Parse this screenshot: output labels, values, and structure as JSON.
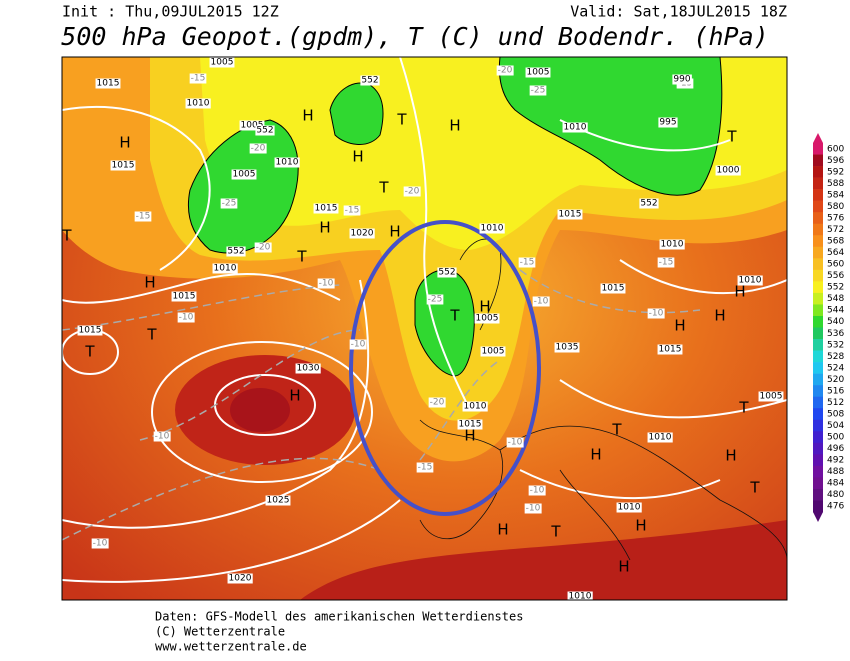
{
  "header": {
    "init": "Init : Thu,09JUL2015 12Z",
    "valid": "Valid: Sat,18JUL2015 18Z",
    "title": "500 hPa Geopot.(gpdm), T (C) und Bodendr. (hPa)"
  },
  "colorbar": [
    {
      "value": 600,
      "color": "#d8186a"
    },
    {
      "value": 596,
      "color": "#a00a1e"
    },
    {
      "value": 592,
      "color": "#b41412"
    },
    {
      "value": 588,
      "color": "#c42414"
    },
    {
      "value": 584,
      "color": "#d43414"
    },
    {
      "value": 580,
      "color": "#e04818"
    },
    {
      "value": 576,
      "color": "#e86018"
    },
    {
      "value": 572,
      "color": "#f07818"
    },
    {
      "value": 568,
      "color": "#f8901c"
    },
    {
      "value": 564,
      "color": "#f8a820"
    },
    {
      "value": 560,
      "color": "#f8c024"
    },
    {
      "value": 556,
      "color": "#f8d824"
    },
    {
      "value": 552,
      "color": "#f8f020"
    },
    {
      "value": 548,
      "color": "#c8f020"
    },
    {
      "value": 544,
      "color": "#80e820"
    },
    {
      "value": 540,
      "color": "#30d830"
    },
    {
      "value": 536,
      "color": "#20c860"
    },
    {
      "value": 532,
      "color": "#20d0a0"
    },
    {
      "value": 528,
      "color": "#20d8d8"
    },
    {
      "value": 524,
      "color": "#20c8f0"
    },
    {
      "value": 520,
      "color": "#20a8f0"
    },
    {
      "value": 516,
      "color": "#2088f0"
    },
    {
      "value": 512,
      "color": "#2068f0"
    },
    {
      "value": 508,
      "color": "#2048f0"
    },
    {
      "value": 504,
      "color": "#3030e0"
    },
    {
      "value": 500,
      "color": "#4020d0"
    },
    {
      "value": 496,
      "color": "#5018c0"
    },
    {
      "value": 492,
      "color": "#6010b0"
    },
    {
      "value": 488,
      "color": "#7010a0"
    },
    {
      "value": 484,
      "color": "#701090"
    },
    {
      "value": 480,
      "color": "#601080"
    },
    {
      "value": 476,
      "color": "#500870"
    }
  ],
  "map": {
    "isobar_labels": [
      "1015",
      "1010",
      "1005",
      "1005",
      "552",
      "1010",
      "1005",
      "552",
      "1010",
      "1015",
      "1015",
      "1030",
      "1025",
      "1020",
      "1015",
      "1020",
      "1015",
      "552",
      "1010",
      "552",
      "1005",
      "1005",
      "1010",
      "1015",
      "1005",
      "1010",
      "995",
      "990",
      "1000",
      "552",
      "1015",
      "1010",
      "1015",
      "1010",
      "1015",
      "1010",
      "1005",
      "1010",
      "1010",
      "1035"
    ],
    "pressure_centers": [
      "H",
      "H",
      "H",
      "H",
      "H",
      "H",
      "H",
      "H",
      "H",
      "H",
      "H",
      "H",
      "H",
      "H",
      "H",
      "H",
      "H",
      "H",
      "T",
      "T",
      "T",
      "T",
      "T",
      "T",
      "T",
      "T",
      "T",
      "T",
      "T",
      "T"
    ],
    "temperature_labels": [
      "-15",
      "-20",
      "-25",
      "-20",
      "-15",
      "-10",
      "-10",
      "-10",
      "-10",
      "-10",
      "-15",
      "-20",
      "-25",
      "-15",
      "-10",
      "-20",
      "-25",
      "-15",
      "-10",
      "-15",
      "-10",
      "-10",
      "-10",
      "-10",
      "-20",
      "-15"
    ]
  },
  "footer": [
    "Daten: GFS-Modell des amerikanischen Wetterdienstes",
    "(C) Wetterzentrale",
    "www.wetterzentrale.de"
  ]
}
